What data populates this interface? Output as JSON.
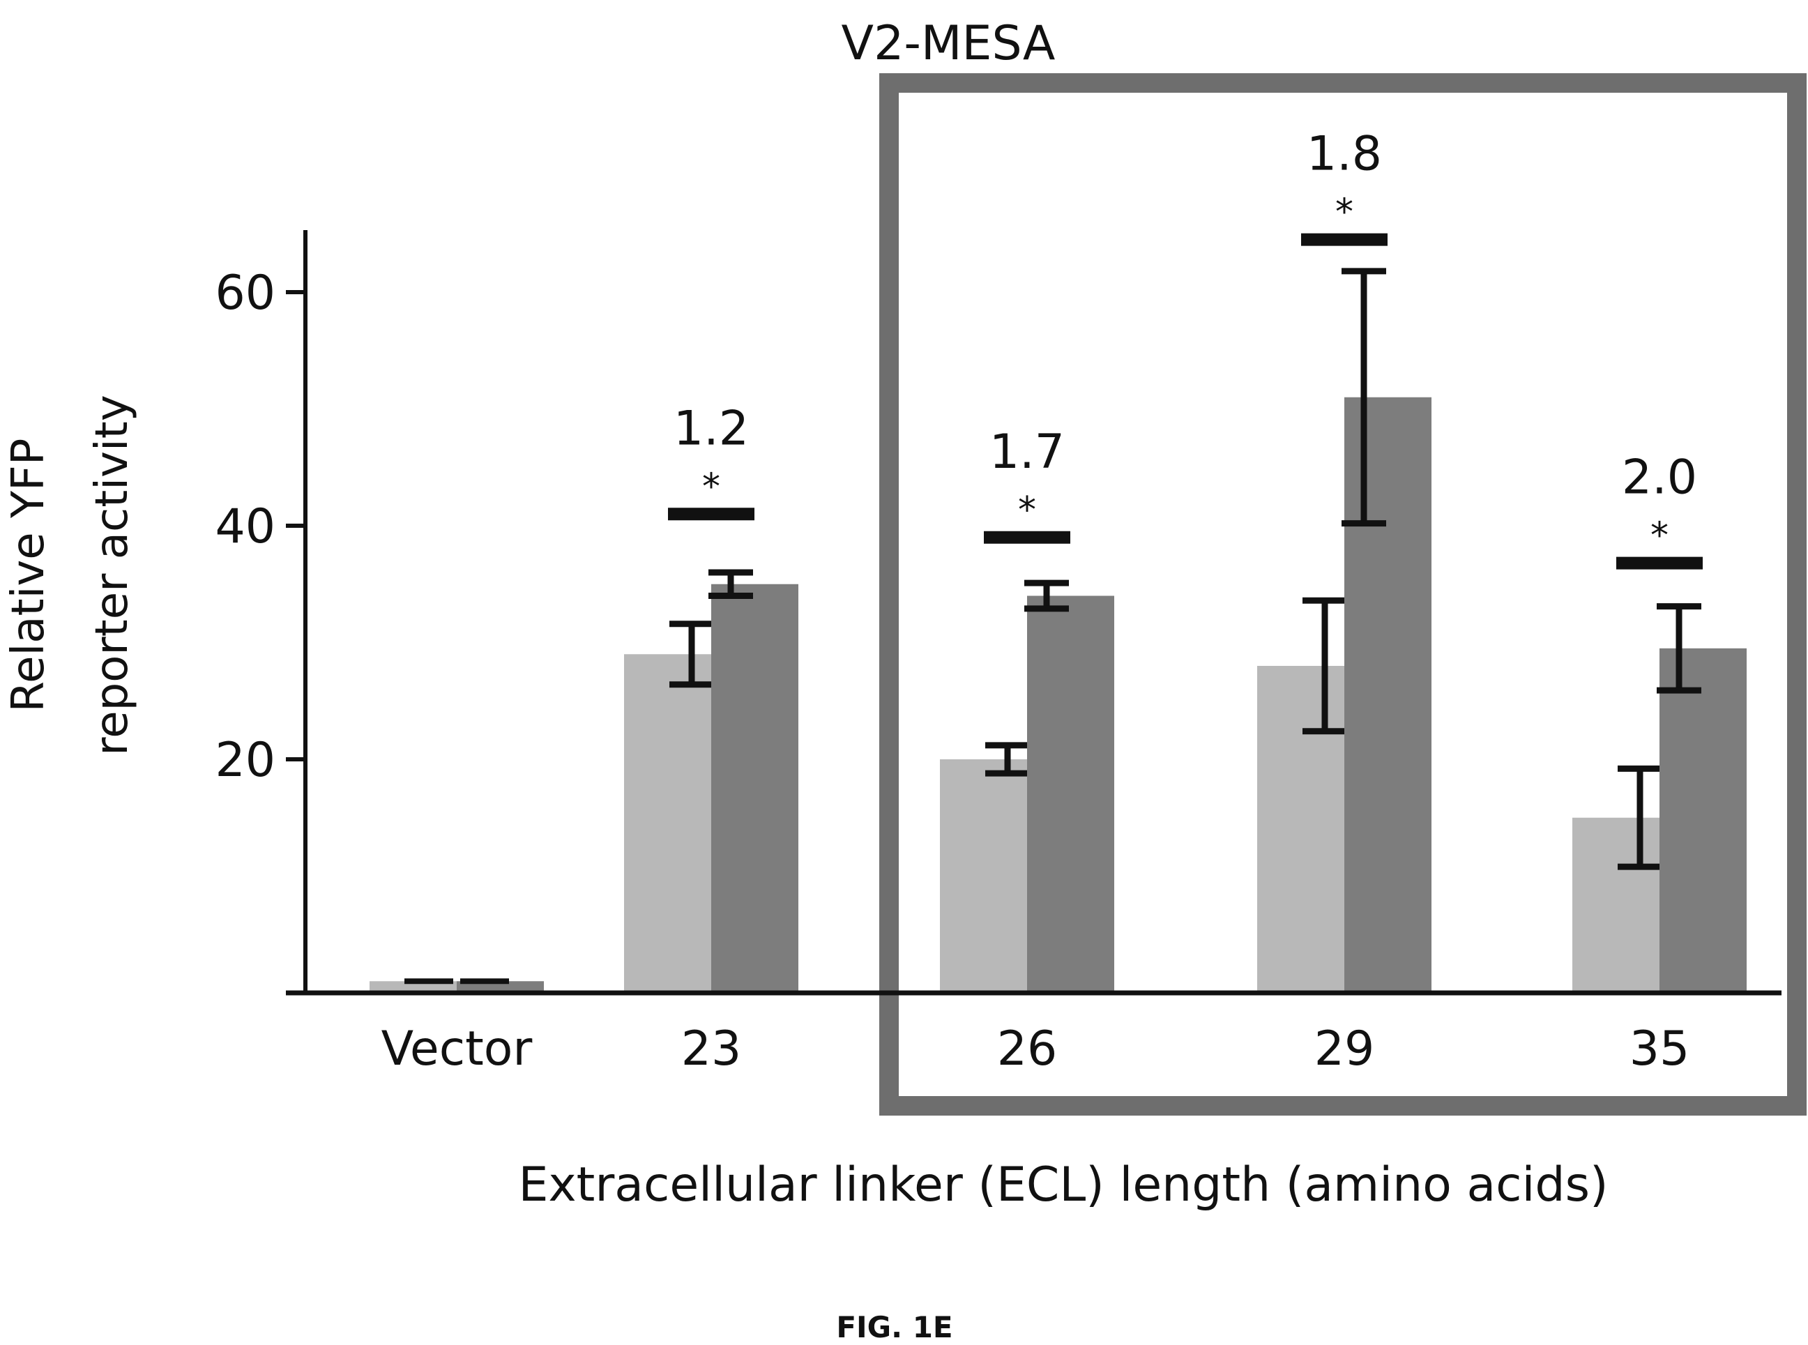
{
  "chart_data": {
    "type": "bar",
    "title": "V2-MESA",
    "xlabel": "Extracellular linker (ECL) length (amino acids)",
    "ylabel": [
      "Relative YFP",
      "reporter activity"
    ],
    "categories": [
      "Vector",
      "23",
      "26",
      "29",
      "35"
    ],
    "ylim": [
      0,
      65
    ],
    "yticks": [
      20,
      40,
      60
    ],
    "grid": false,
    "legend": "none",
    "series": [
      {
        "values": [
          1,
          29,
          20,
          28,
          15
        ],
        "errors": [
          0,
          2.6,
          1.2,
          5.6,
          4.2
        ],
        "color": "#b8b8b8"
      },
      {
        "values": [
          1,
          35,
          34,
          51,
          29.5
        ],
        "errors": [
          0,
          1.0,
          1.1,
          10.8,
          3.6
        ],
        "color": "#7d7d7d"
      }
    ],
    "annotations": [
      {
        "category": "23",
        "fold_change": "1.2",
        "significance": "*",
        "bar_value": 41
      },
      {
        "category": "26",
        "fold_change": "1.7",
        "significance": "*",
        "bar_value": 39
      },
      {
        "category": "29",
        "fold_change": "1.8",
        "significance": "*",
        "bar_value": 64.5
      },
      {
        "category": "35",
        "fold_change": "2.0",
        "significance": "*",
        "bar_value": 36.8
      }
    ],
    "highlight_box": {
      "categories": [
        "26",
        "29",
        "35"
      ],
      "color": "#6e6e6e"
    }
  },
  "caption": "FIG. 1E"
}
